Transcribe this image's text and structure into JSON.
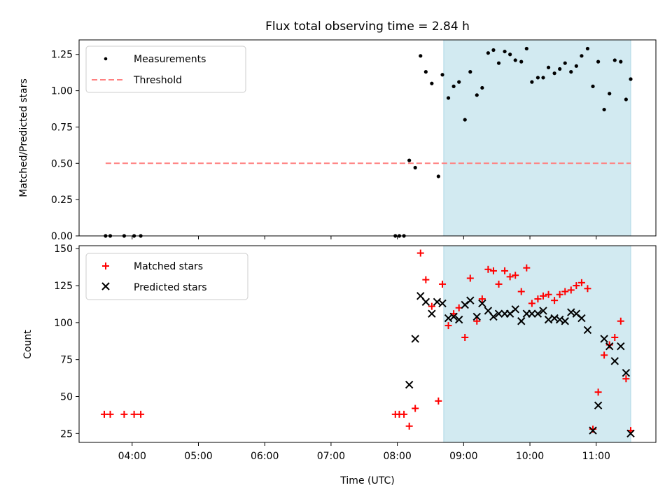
{
  "chart_data": [
    {
      "type": "scatter",
      "title": "Flux total observing time = 2.84 h",
      "xlabel": "",
      "ylabel": "Matched/Predicted stars",
      "xlim": [
        3.2,
        11.9
      ],
      "ylim": [
        0,
        1.35
      ],
      "yticks": [
        0,
        0.25,
        0.5,
        0.75,
        1.0,
        1.25
      ],
      "ytick_labels": [
        "0.00",
        "0.25",
        "0.50",
        "0.75",
        "1.00",
        "1.25"
      ],
      "xticks": [
        4,
        5,
        6,
        7,
        8,
        9,
        10,
        11
      ],
      "shaded_span": [
        8.7,
        11.52
      ],
      "shade_color": "#add8e6",
      "legend_position": "upper left",
      "series": [
        {
          "name": "Measurements",
          "marker": "dot",
          "color": "#000000",
          "x": [
            3.6,
            3.67,
            3.88,
            4.03,
            4.13,
            7.97,
            8.03,
            8.1,
            8.18,
            8.27,
            8.35,
            8.43,
            8.52,
            8.62,
            8.68,
            8.77,
            8.85,
            8.93,
            9.02,
            9.1,
            9.2,
            9.28,
            9.37,
            9.45,
            9.53,
            9.62,
            9.7,
            9.78,
            9.87,
            9.95,
            10.03,
            10.12,
            10.2,
            10.28,
            10.37,
            10.45,
            10.53,
            10.62,
            10.7,
            10.78,
            10.87,
            10.95,
            11.03,
            11.12,
            11.2,
            11.28,
            11.37,
            11.45,
            11.52
          ],
          "y": [
            0,
            0,
            0,
            0,
            0,
            0,
            0,
            0,
            0.52,
            0.47,
            1.24,
            1.13,
            1.05,
            0.41,
            1.11,
            0.95,
            1.03,
            1.06,
            0.8,
            1.13,
            0.97,
            1.02,
            1.26,
            1.28,
            1.19,
            1.27,
            1.25,
            1.21,
            1.2,
            1.29,
            1.06,
            1.09,
            1.09,
            1.16,
            1.12,
            1.15,
            1.19,
            1.13,
            1.17,
            1.24,
            1.29,
            1.03,
            1.2,
            0.87,
            0.98,
            1.21,
            1.2,
            0.94,
            1.08
          ]
        },
        {
          "name": "Threshold",
          "line": "dashed",
          "color": "#ff8080",
          "x": [
            3.6,
            11.52
          ],
          "y": [
            0.5,
            0.5
          ]
        }
      ]
    },
    {
      "type": "scatter",
      "title": "",
      "xlabel": "Time (UTC)",
      "ylabel": "Count",
      "xlim": [
        3.2,
        11.9
      ],
      "ylim": [
        19,
        152
      ],
      "yticks": [
        25,
        50,
        75,
        100,
        125,
        150
      ],
      "ytick_labels": [
        "25",
        "50",
        "75",
        "100",
        "125",
        "150"
      ],
      "xticks": [
        4,
        5,
        6,
        7,
        8,
        9,
        10,
        11
      ],
      "xtick_labels": [
        "04:00",
        "05:00",
        "06:00",
        "07:00",
        "08:00",
        "09:00",
        "10:00",
        "11:00"
      ],
      "shaded_span": [
        8.7,
        11.52
      ],
      "shade_color": "#add8e6",
      "legend_position": "upper left",
      "series": [
        {
          "name": "Matched stars",
          "marker": "plus",
          "color": "#ff0000",
          "x": [
            3.58,
            3.67,
            3.88,
            4.03,
            4.13,
            7.97,
            8.03,
            8.1,
            8.18,
            8.27,
            8.35,
            8.43,
            8.52,
            8.62,
            8.68,
            8.77,
            8.85,
            8.93,
            9.02,
            9.1,
            9.2,
            9.28,
            9.37,
            9.45,
            9.53,
            9.62,
            9.7,
            9.78,
            9.87,
            9.95,
            10.03,
            10.12,
            10.2,
            10.28,
            10.37,
            10.45,
            10.53,
            10.62,
            10.7,
            10.78,
            10.87,
            10.95,
            11.03,
            11.12,
            11.2,
            11.28,
            11.37,
            11.45,
            11.52
          ],
          "y": [
            38,
            38,
            38,
            38,
            38,
            38,
            38,
            38,
            30,
            42,
            147,
            129,
            111,
            47,
            126,
            98,
            106,
            110,
            90,
            130,
            101,
            116,
            136,
            135,
            126,
            135,
            131,
            132,
            121,
            137,
            113,
            116,
            118,
            119,
            115,
            119,
            121,
            122,
            125,
            127,
            123,
            28,
            53,
            78,
            85,
            90,
            101,
            62,
            27
          ]
        },
        {
          "name": "Predicted stars",
          "marker": "x",
          "color": "#000000",
          "x": [
            8.18,
            8.27,
            8.35,
            8.43,
            8.52,
            8.6,
            8.68,
            8.77,
            8.85,
            8.93,
            9.02,
            9.1,
            9.2,
            9.28,
            9.37,
            9.45,
            9.53,
            9.62,
            9.7,
            9.78,
            9.87,
            9.95,
            10.03,
            10.12,
            10.2,
            10.28,
            10.37,
            10.45,
            10.53,
            10.62,
            10.7,
            10.78,
            10.87,
            10.95,
            11.03,
            11.12,
            11.2,
            11.28,
            11.37,
            11.45,
            11.52
          ],
          "y": [
            58,
            89,
            118,
            114,
            106,
            114,
            113,
            103,
            104,
            102,
            112,
            115,
            104,
            113,
            108,
            104,
            106,
            106,
            106,
            109,
            101,
            106,
            106,
            106,
            108,
            102,
            103,
            102,
            101,
            107,
            106,
            103,
            95,
            27,
            44,
            89,
            84,
            74,
            84,
            66,
            25
          ]
        }
      ]
    }
  ]
}
